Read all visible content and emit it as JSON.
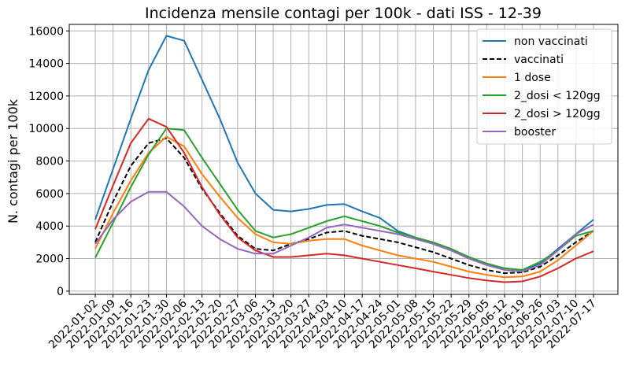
{
  "chart_data": {
    "type": "line",
    "title": "Incidenza mensile contagi per 100k - dati ISS - 12-39",
    "xlabel": "",
    "ylabel": "N. contagi per 100k",
    "ylim": [
      -200,
      16400
    ],
    "yticks": [
      0,
      2000,
      4000,
      6000,
      8000,
      10000,
      12000,
      14000,
      16000
    ],
    "grid": true,
    "legend_position": "top-right",
    "x": [
      "2022-01-02",
      "2022-01-09",
      "2022-01-16",
      "2022-01-23",
      "2022-01-30",
      "2022-02-06",
      "2022-02-13",
      "2022-02-20",
      "2022-02-27",
      "2022-03-06",
      "2022-03-13",
      "2022-03-20",
      "2022-03-27",
      "2022-04-03",
      "2022-04-10",
      "2022-04-17",
      "2022-04-24",
      "2022-05-01",
      "2022-05-08",
      "2022-05-15",
      "2022-05-22",
      "2022-05-29",
      "2022-06-05",
      "2022-06-12",
      "2022-06-19",
      "2022-06-26",
      "2022-07-03",
      "2022-07-10",
      "2022-07-17"
    ],
    "series": [
      {
        "name": "non vaccinati",
        "color": "#1f77b4",
        "dash": "solid",
        "values": [
          4400,
          7500,
          10600,
          13600,
          15700,
          15400,
          13000,
          10600,
          7900,
          6000,
          5000,
          4900,
          5050,
          5300,
          5350,
          4900,
          4500,
          3700,
          3300,
          2900,
          2500,
          2000,
          1650,
          1400,
          1300,
          1700,
          2600,
          3500,
          4400
        ]
      },
      {
        "name": "vaccinati",
        "color": "#000000",
        "dash": "dashed",
        "values": [
          3000,
          5500,
          7700,
          9100,
          9400,
          8200,
          6300,
          4800,
          3400,
          2600,
          2500,
          2900,
          3200,
          3600,
          3700,
          3400,
          3200,
          3000,
          2700,
          2400,
          2000,
          1600,
          1300,
          1100,
          1150,
          1500,
          2200,
          3000,
          3700
        ]
      },
      {
        "name": "1 dose",
        "color": "#ff7f0e",
        "dash": "solid",
        "values": [
          2600,
          4800,
          6800,
          8500,
          9500,
          8900,
          7200,
          5800,
          4500,
          3500,
          3000,
          2900,
          3100,
          3200,
          3200,
          2800,
          2500,
          2200,
          2000,
          1800,
          1500,
          1200,
          1000,
          850,
          900,
          1200,
          1900,
          2800,
          3700
        ]
      },
      {
        "name": "2_dosi < 120gg",
        "color": "#2ca02c",
        "dash": "solid",
        "values": [
          2050,
          4200,
          6400,
          8400,
          10000,
          9900,
          8200,
          6600,
          5000,
          3700,
          3300,
          3500,
          3900,
          4300,
          4600,
          4300,
          4000,
          3600,
          3300,
          3000,
          2600,
          2100,
          1700,
          1400,
          1300,
          1800,
          2500,
          3400,
          3700
        ]
      },
      {
        "name": "2_dosi > 120gg",
        "color": "#d62728",
        "dash": "solid",
        "values": [
          3800,
          6500,
          9100,
          10600,
          10100,
          8500,
          6400,
          4700,
          3300,
          2500,
          2100,
          2100,
          2200,
          2300,
          2200,
          2000,
          1800,
          1600,
          1400,
          1200,
          1000,
          800,
          650,
          550,
          600,
          900,
          1400,
          2000,
          2450
        ]
      },
      {
        "name": "booster",
        "color": "#9467bd",
        "dash": "solid",
        "values": [
          2900,
          4400,
          5500,
          6100,
          6100,
          5200,
          4000,
          3200,
          2600,
          2300,
          2300,
          2800,
          3300,
          3900,
          4100,
          3900,
          3700,
          3500,
          3200,
          2900,
          2500,
          2000,
          1600,
          1300,
          1200,
          1600,
          2500,
          3500,
          4100
        ]
      }
    ]
  }
}
